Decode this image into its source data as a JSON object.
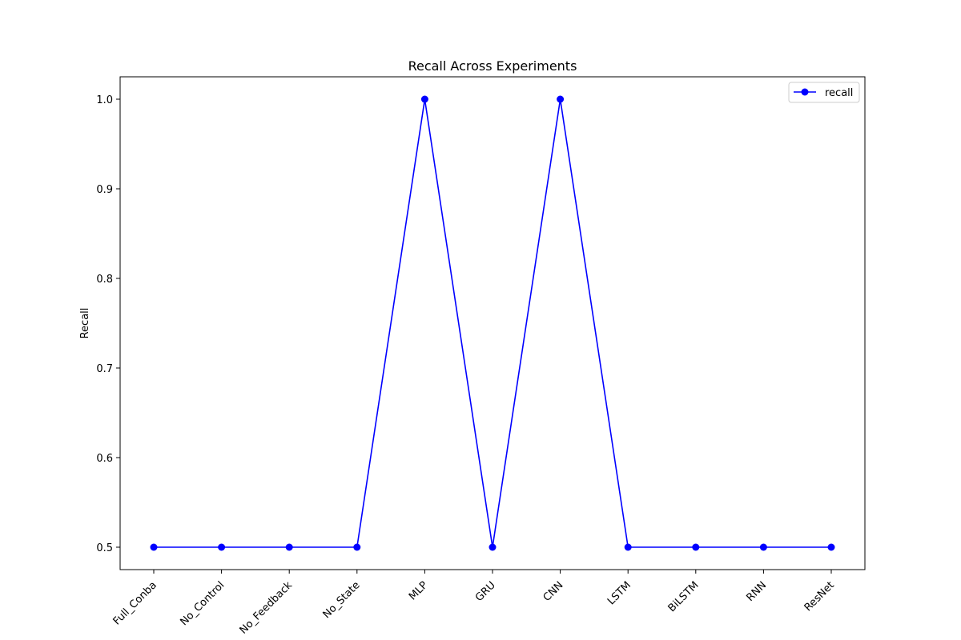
{
  "chart_data": {
    "type": "line",
    "title": "Recall Across Experiments",
    "xlabel": "",
    "ylabel": "Recall",
    "categories": [
      "Full_Conba",
      "No_Control",
      "No_Feedback",
      "No_State",
      "MLP",
      "GRU",
      "CNN",
      "LSTM",
      "BiLSTM",
      "RNN",
      "ResNet"
    ],
    "series": [
      {
        "name": "recall",
        "values": [
          0.5,
          0.5,
          0.5,
          0.5,
          1.0,
          0.5,
          1.0,
          0.5,
          0.5,
          0.5,
          0.5
        ],
        "color": "#0000ff"
      }
    ],
    "yticks": [
      "0.5",
      "0.6",
      "0.7",
      "0.8",
      "0.9",
      "1.0"
    ],
    "ylim": [
      0.475,
      1.025
    ],
    "grid": false,
    "legend": "top-right"
  }
}
